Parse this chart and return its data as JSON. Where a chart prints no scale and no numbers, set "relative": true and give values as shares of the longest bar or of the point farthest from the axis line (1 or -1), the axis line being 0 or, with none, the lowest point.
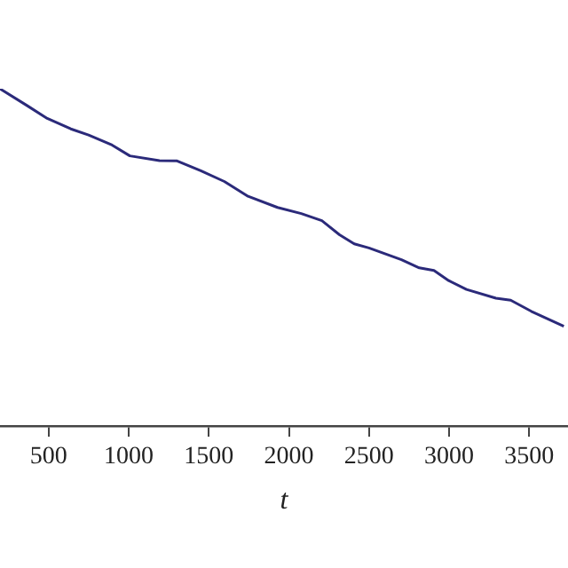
{
  "chart_data": {
    "type": "line",
    "relative": true,
    "xlabel": "t",
    "xlim": [
      196,
      3743
    ],
    "xticks": [
      500,
      1000,
      1500,
      2000,
      2500,
      3000,
      3500
    ],
    "grid": false,
    "legend": false,
    "marker": "none",
    "line_style": "solid",
    "series": [
      {
        "color": "#2b2a7a",
        "x": [
          196,
          362,
          491,
          638,
          749,
          896,
          1007,
          1192,
          1302,
          1450,
          1597,
          1745,
          1929,
          2077,
          2206,
          2316,
          2408,
          2500,
          2703,
          2814,
          2906,
          2998,
          3109,
          3293,
          3385,
          3514,
          3717
        ],
        "values": [
          1,
          0.951,
          0.912,
          0.881,
          0.863,
          0.833,
          0.801,
          0.787,
          0.786,
          0.757,
          0.725,
          0.681,
          0.648,
          0.63,
          0.609,
          0.567,
          0.54,
          0.528,
          0.493,
          0.469,
          0.461,
          0.431,
          0.405,
          0.379,
          0.373,
          0.34,
          0.296
        ]
      }
    ]
  }
}
